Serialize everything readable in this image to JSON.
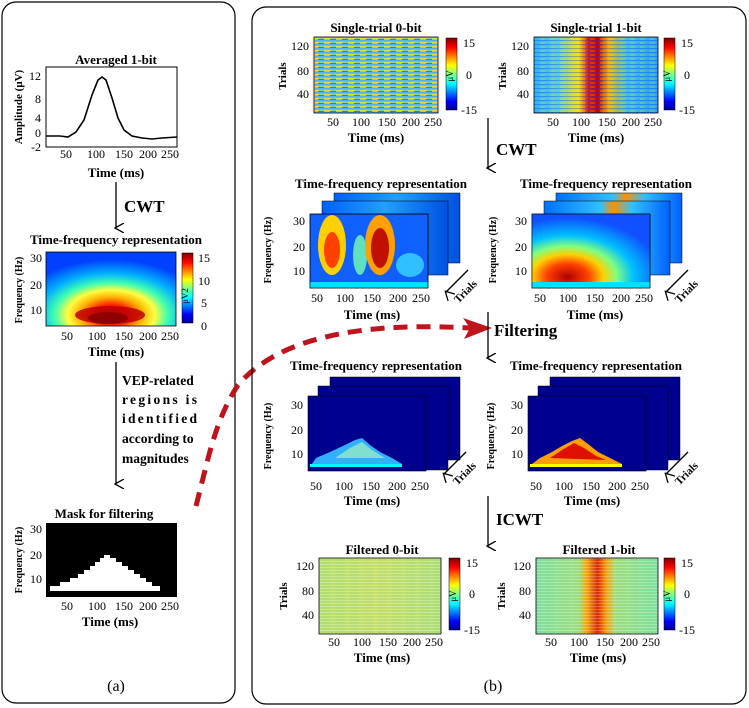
{
  "panel_a": {
    "caption": "(a)",
    "avg_plot": {
      "title": "Averaged 1-bit",
      "ylabel": "Amplitude (μV)",
      "xlabel": "Time (ms)",
      "yticks": [
        "12",
        "8",
        "4",
        "0",
        "-2"
      ],
      "xticks": [
        "50",
        "100",
        "150",
        "200",
        "250"
      ]
    },
    "cwt_label": "CWT",
    "tf_plot": {
      "title": "Time-frequency representation",
      "ylabel": "Frequency (Hz)",
      "xlabel": "Time (ms)",
      "yticks": [
        "30",
        "20",
        "10"
      ],
      "xticks": [
        "50",
        "100",
        "150",
        "200",
        "250"
      ],
      "colorbar_ticks": [
        "15",
        "10",
        "5",
        "0"
      ],
      "colorbar_unit": "μV2"
    },
    "vep_note": [
      "VEP-related",
      "regions is",
      "identified",
      "according to",
      "magnitudes"
    ],
    "mask_plot": {
      "title": "Mask for filtering",
      "ylabel": "Frequency (Hz)",
      "xlabel": "Time (ms)",
      "yticks": [
        "30",
        "20",
        "10"
      ],
      "xticks": [
        "50",
        "100",
        "150",
        "200",
        "250"
      ]
    }
  },
  "panel_b": {
    "caption": "(b)",
    "single0": {
      "title": "Single-trial 0-bit",
      "ylabel": "Trials",
      "xlabel": "Time (ms)",
      "yticks": [
        "120",
        "80",
        "40"
      ],
      "xticks": [
        "50",
        "100",
        "150",
        "200",
        "250"
      ],
      "cbar_ticks": [
        "15",
        "0",
        "-15"
      ],
      "cbar_unit": "μV"
    },
    "single1": {
      "title": "Single-trial 1-bit",
      "ylabel": "Trials",
      "xlabel": "Time (ms)",
      "yticks": [
        "120",
        "80",
        "40"
      ],
      "xticks": [
        "50",
        "100",
        "150",
        "200",
        "250"
      ],
      "cbar_ticks": [
        "15",
        "0",
        "-15"
      ],
      "cbar_unit": "μV"
    },
    "cwt_label": "CWT",
    "tf0": {
      "title": "Time-frequency representation",
      "ylabel": "Frequency (Hz)",
      "xlabel": "Time (ms)",
      "yticks": [
        "30",
        "20",
        "10"
      ],
      "xticks": [
        "50",
        "100",
        "150",
        "200",
        "250"
      ],
      "trials_label": "Trials"
    },
    "tf1": {
      "title": "Time-frequency representation",
      "ylabel": "Frequency (Hz)",
      "xlabel": "Time (ms)",
      "yticks": [
        "30",
        "20",
        "10"
      ],
      "xticks": [
        "50",
        "100",
        "150",
        "200",
        "250"
      ],
      "trials_label": "Trials"
    },
    "filtering_label": "Filtering",
    "ftf0": {
      "title": "Time-frequency representation",
      "ylabel": "Frequency (Hz)",
      "xlabel": "Time (ms)",
      "yticks": [
        "30",
        "20",
        "10"
      ],
      "xticks": [
        "50",
        "100",
        "150",
        "200",
        "250"
      ],
      "trials_label": "Trials"
    },
    "ftf1": {
      "title": "Time-frequency representation",
      "ylabel": "Frequency (Hz)",
      "xlabel": "Time (ms)",
      "yticks": [
        "30",
        "20",
        "10"
      ],
      "xticks": [
        "50",
        "100",
        "150",
        "200",
        "250"
      ],
      "trials_label": "Trials"
    },
    "icwt_label": "ICWT",
    "filt0": {
      "title": "Filtered 0-bit",
      "ylabel": "Trials",
      "xlabel": "Time (ms)",
      "yticks": [
        "120",
        "80",
        "40"
      ],
      "xticks": [
        "50",
        "100",
        "150",
        "200",
        "250"
      ],
      "cbar_ticks": [
        "15",
        "0",
        "-15"
      ],
      "cbar_unit": "μV"
    },
    "filt1": {
      "title": "Filtered 1-bit",
      "ylabel": "Trials",
      "xlabel": "Time (ms)",
      "yticks": [
        "120",
        "80",
        "40"
      ],
      "xticks": [
        "50",
        "100",
        "150",
        "200",
        "250"
      ],
      "cbar_ticks": [
        "15",
        "0",
        "-15"
      ],
      "cbar_unit": "μV"
    }
  },
  "colors": {
    "arrow": "#000000",
    "dashed_arrow": "#c0141c",
    "bg_dark_blue": "#00008f"
  }
}
